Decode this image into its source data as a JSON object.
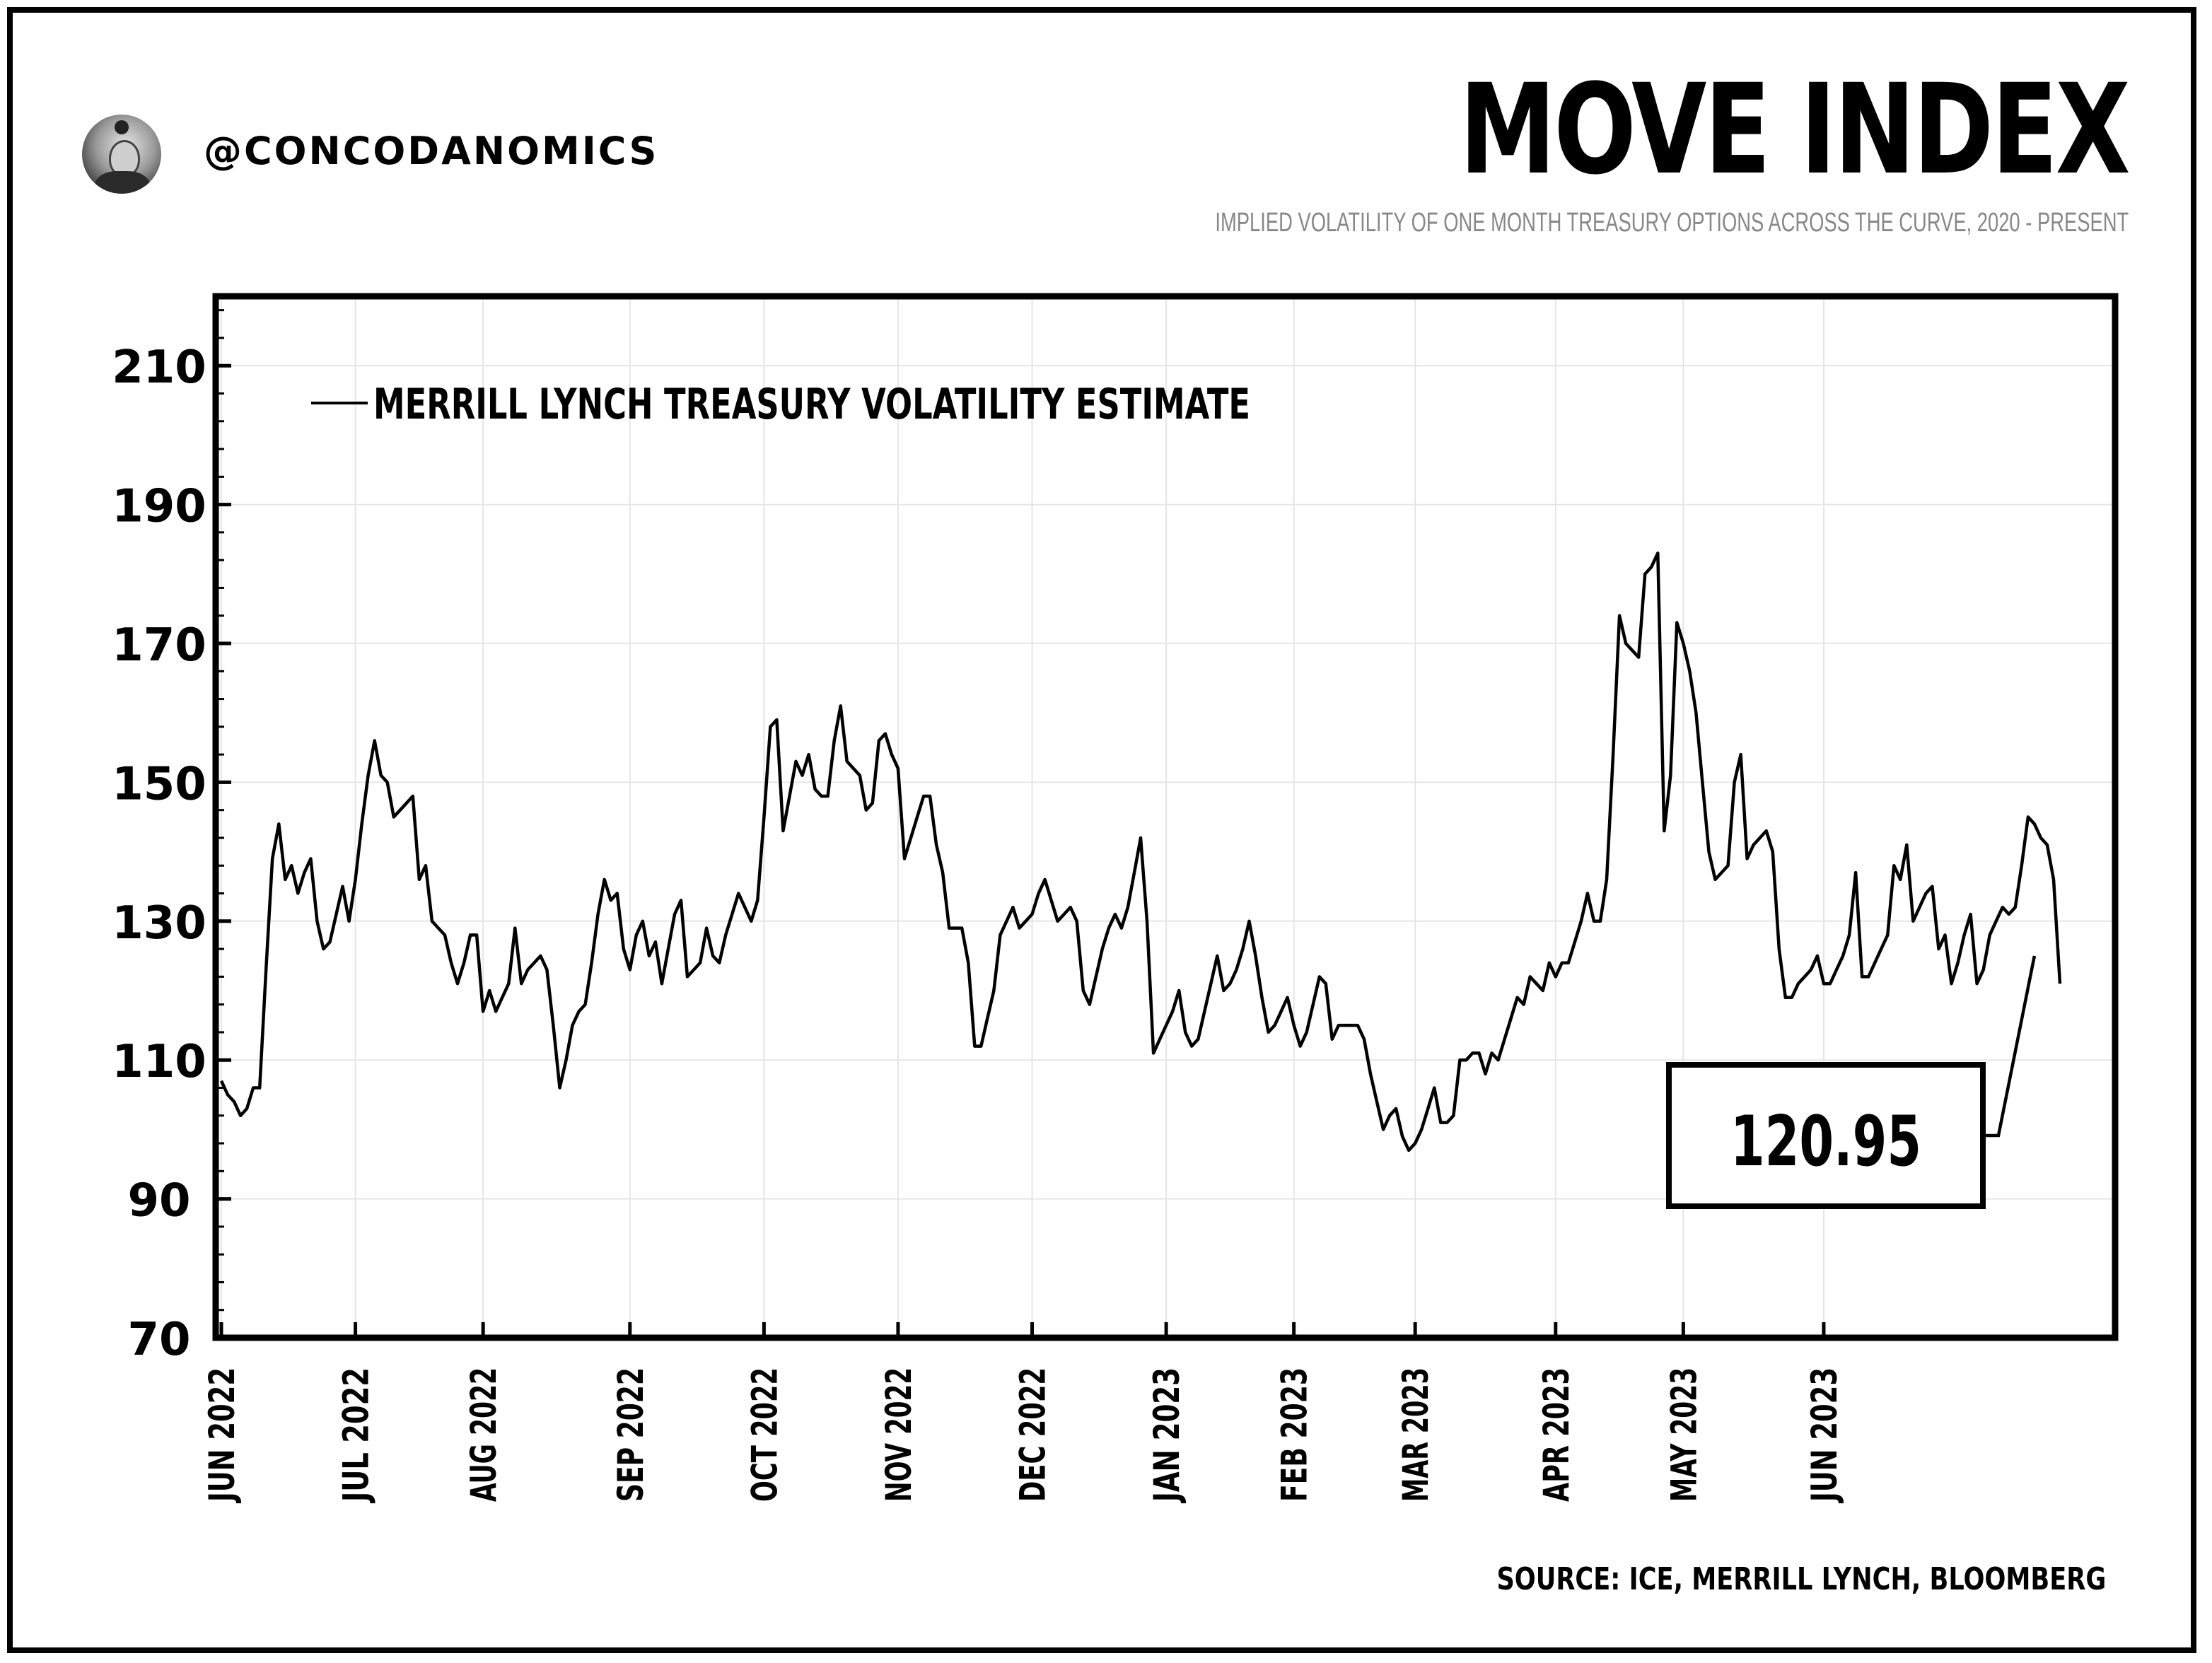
{
  "header": {
    "handle": "@CONCODANOMICS",
    "title": "MOVE INDEX",
    "subtitle": "IMPLIED VOLATILITY OF ONE MONTH TREASURY OPTIONS ACROSS THE CURVE, 2020 - PRESENT"
  },
  "footer": {
    "source": "SOURCE: ICE, MERRILL LYNCH, BLOOMBERG"
  },
  "callout": {
    "label": "120.95"
  },
  "chart_data": {
    "type": "line",
    "title": "MOVE INDEX",
    "xlabel": "",
    "ylabel": "",
    "ylim": [
      70,
      220
    ],
    "yticks": [
      70,
      90,
      110,
      130,
      150,
      170,
      190,
      210
    ],
    "ytick_labels": [
      "70",
      "90",
      "110",
      "130",
      "150",
      "170",
      "190",
      "210"
    ],
    "grid": true,
    "legend_position": "top-left",
    "xticks": [
      {
        "label": "JUN 2022",
        "pos": 0
      },
      {
        "label": "JUL 2022",
        "pos": 21
      },
      {
        "label": "AUG 2022",
        "pos": 41
      },
      {
        "label": "SEP 2022",
        "pos": 64
      },
      {
        "label": "OCT 2022",
        "pos": 85
      },
      {
        "label": "NOV 2022",
        "pos": 106
      },
      {
        "label": "DEC 2022",
        "pos": 127
      },
      {
        "label": "JAN 2023",
        "pos": 148
      },
      {
        "label": "FEB 2023",
        "pos": 168
      },
      {
        "label": "MAR 2023",
        "pos": 187
      },
      {
        "label": "APR 2023",
        "pos": 209
      },
      {
        "label": "MAY 2023",
        "pos": 229
      },
      {
        "label": "JUN 2023",
        "pos": 251
      }
    ],
    "series": [
      {
        "name": "MERRILL LYNCH TREASURY VOLATILITY ESTIMATE",
        "values": [
          107,
          105,
          104,
          102,
          103,
          106,
          106,
          123,
          139,
          144,
          136,
          138,
          134,
          137,
          139,
          130,
          126,
          127,
          131,
          135,
          130,
          136,
          144,
          151,
          156,
          151,
          150,
          145,
          146,
          147,
          148,
          136,
          138,
          130,
          129,
          128,
          124,
          121,
          124,
          128,
          128,
          117,
          120,
          117,
          119,
          121,
          129,
          121,
          123,
          124,
          125,
          123,
          115,
          106,
          110,
          115,
          117,
          118,
          124,
          131,
          136,
          133,
          134,
          126,
          123,
          128,
          130,
          125,
          127,
          121,
          126,
          131,
          133,
          122,
          123,
          124,
          129,
          125,
          124,
          128,
          131,
          134,
          132,
          130,
          133,
          145,
          158,
          159,
          143,
          148,
          153,
          151,
          154,
          149,
          148,
          148,
          156,
          161,
          153,
          152,
          151,
          146,
          147,
          156,
          157,
          154,
          152,
          139,
          142,
          145,
          148,
          148,
          141,
          137,
          129,
          129,
          129,
          124,
          112,
          112,
          116,
          120,
          128,
          130,
          132,
          129,
          130,
          131,
          134,
          136,
          133,
          130,
          131,
          132,
          130,
          120,
          118,
          122,
          126,
          129,
          131,
          129,
          132,
          137,
          142,
          130,
          111,
          113,
          115,
          117,
          120,
          114,
          112,
          113,
          117,
          121,
          125,
          120,
          121,
          123,
          126,
          130,
          125,
          119,
          114,
          115,
          117,
          119,
          115,
          112,
          114,
          118,
          122,
          121,
          113,
          115,
          115,
          115,
          115,
          113,
          108,
          104,
          100,
          102,
          103,
          99,
          97,
          98,
          100,
          103,
          106,
          101,
          101,
          102,
          110,
          110,
          111,
          111,
          108,
          111,
          110,
          113,
          116,
          119,
          118,
          122,
          121,
          120,
          124,
          122,
          124,
          124,
          127,
          130,
          134,
          130,
          130,
          136,
          154,
          174,
          170,
          169,
          168,
          180,
          181,
          183,
          143,
          151,
          173,
          170,
          166,
          160,
          150,
          140,
          136,
          137,
          138,
          150,
          154,
          139,
          141,
          142,
          143,
          140,
          126,
          119,
          119,
          121,
          122,
          123,
          125,
          121,
          121,
          123,
          125,
          128,
          137,
          122,
          122,
          124,
          126,
          128,
          138,
          136,
          141,
          130,
          132,
          134,
          135,
          126,
          128,
          121,
          124,
          128,
          131,
          121,
          123,
          128,
          130,
          132,
          131,
          132,
          138,
          145,
          144,
          142,
          141,
          136,
          121
        ]
      }
    ],
    "annotation": {
      "text": "120.95",
      "points_to": "last value"
    }
  }
}
